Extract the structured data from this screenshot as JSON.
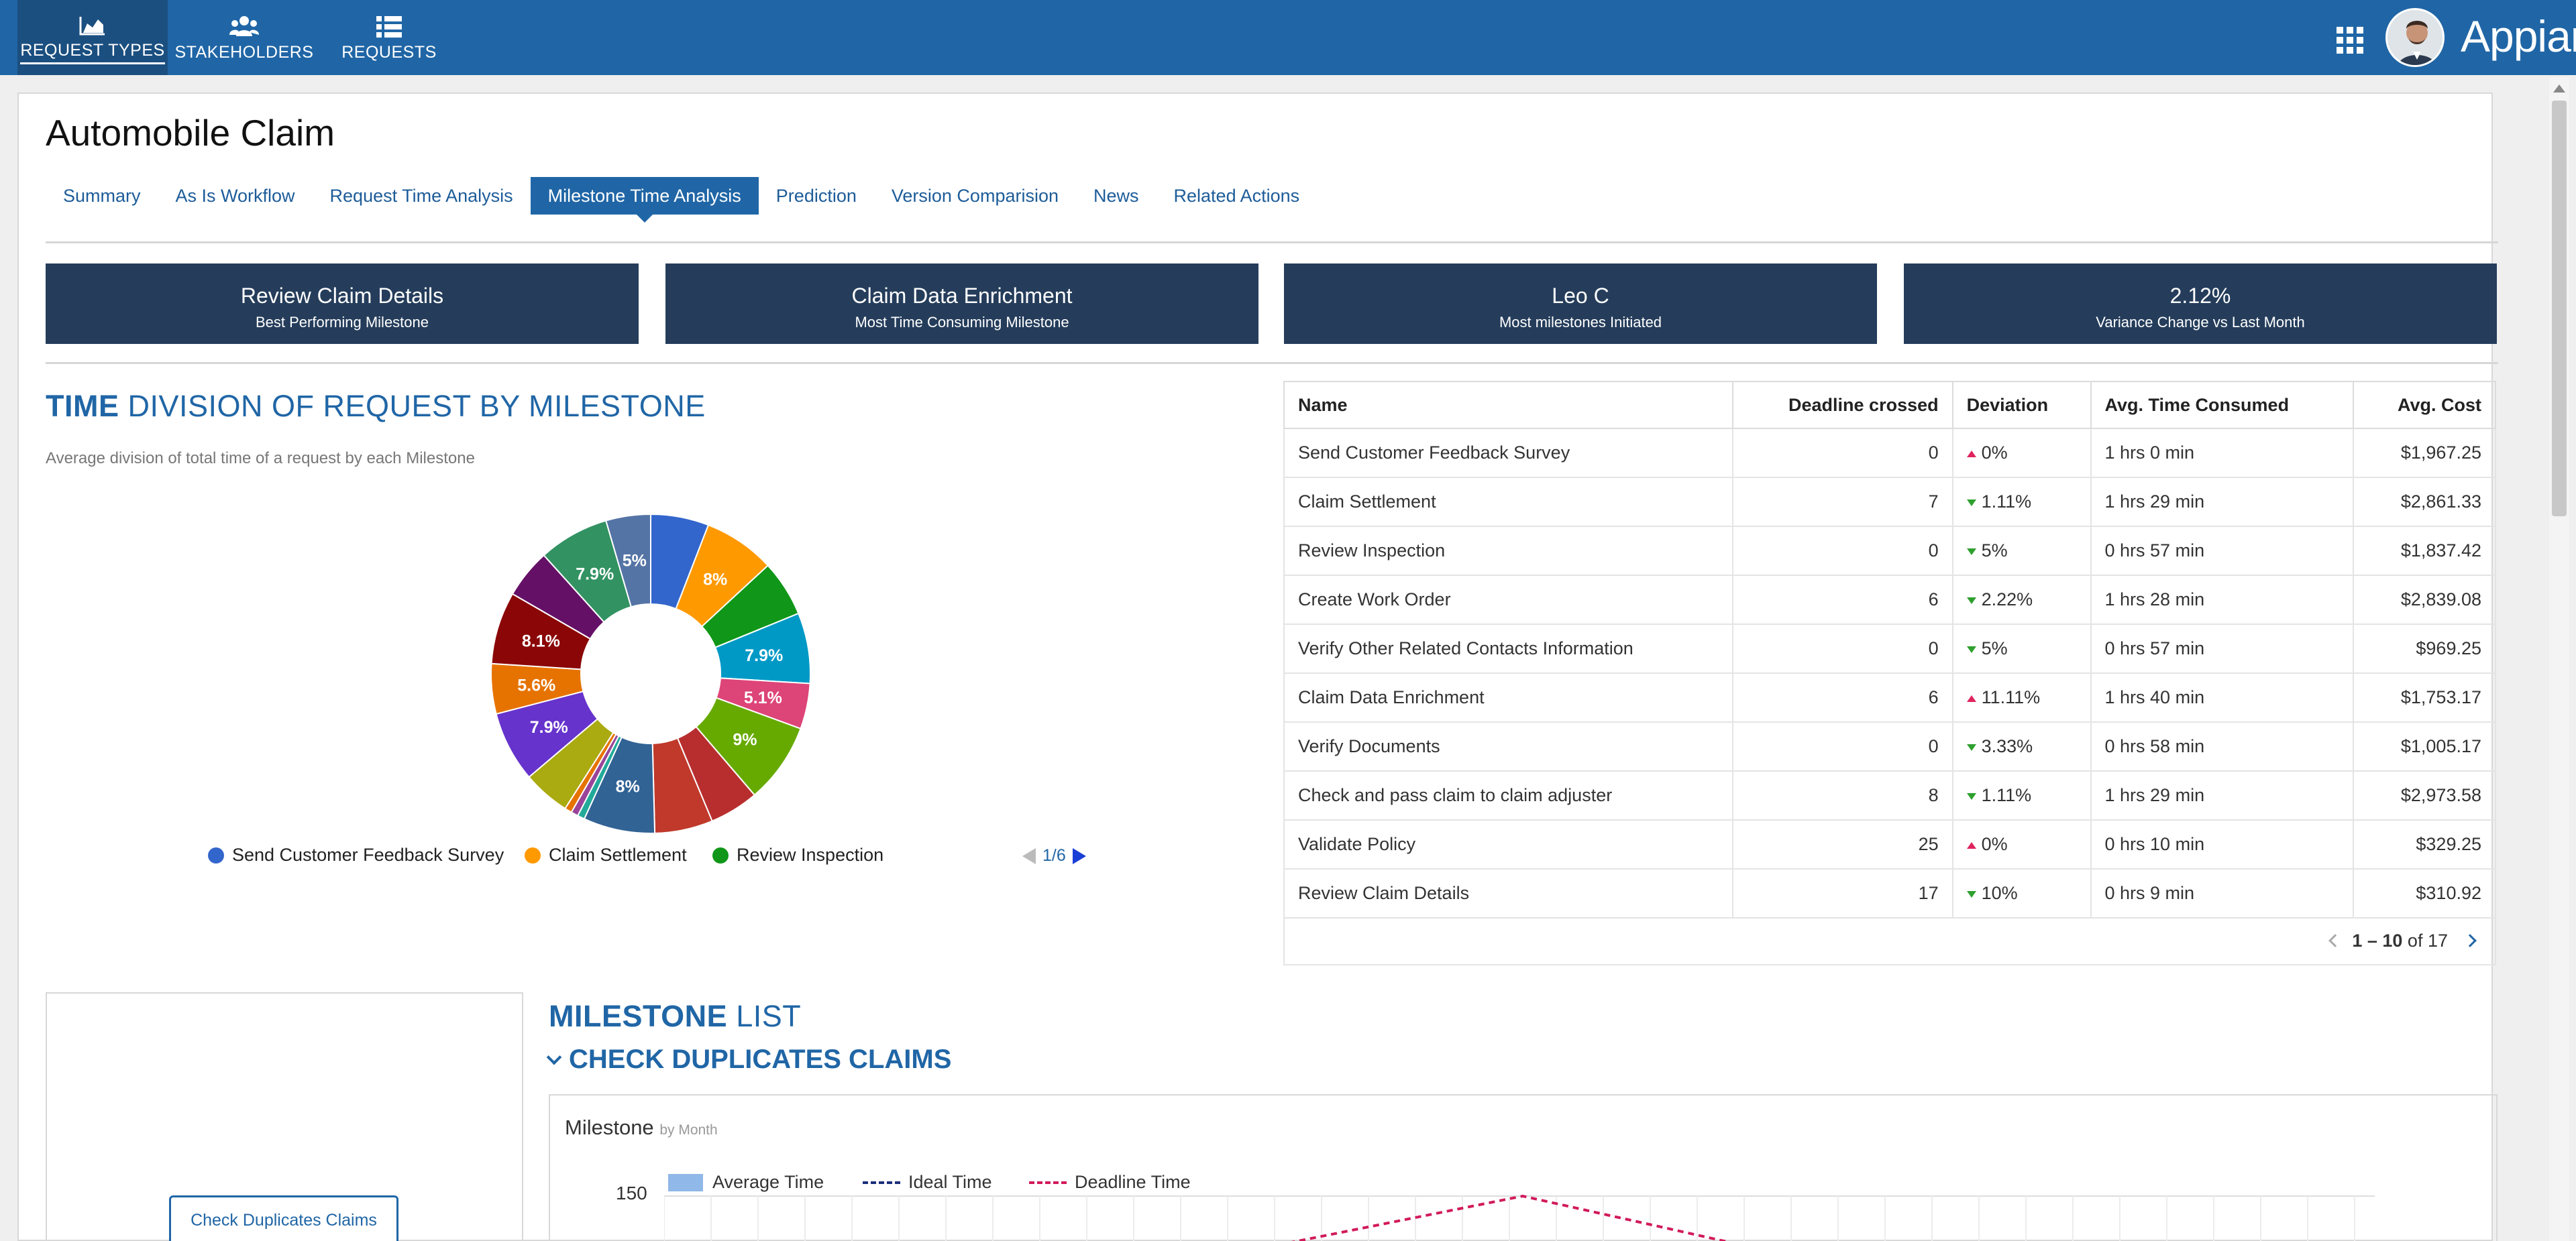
{
  "nav": {
    "items": [
      {
        "label": "REQUEST TYPES",
        "icon": "area-chart-icon"
      },
      {
        "label": "STAKEHOLDERS",
        "icon": "users-icon"
      },
      {
        "label": "REQUESTS",
        "icon": "list-icon"
      }
    ],
    "brand": "Appian"
  },
  "page": {
    "title": "Automobile Claim",
    "tabs": [
      "Summary",
      "As Is Workflow",
      "Request Time Analysis",
      "Milestone Time Analysis",
      "Prediction",
      "Version Comparision",
      "News",
      "Related Actions"
    ],
    "active_tab": "Milestone Time Analysis"
  },
  "kpis": [
    {
      "value": "Review Claim Details",
      "label": "Best Performing Milestone"
    },
    {
      "value": "Claim Data Enrichment",
      "label": "Most Time Consuming Milestone"
    },
    {
      "value": "Leo C",
      "label": "Most milestones Initiated"
    },
    {
      "value": "2.12%",
      "label": "Variance Change vs Last Month"
    }
  ],
  "time_division": {
    "title_bold": "TIME",
    "title_rest": " DIVISION OF REQUEST BY MILESTONE",
    "subtitle": "Average division of total time of a request by each Milestone",
    "legend": [
      {
        "name": "Send Customer Feedback Survey",
        "color": "#3366cc"
      },
      {
        "name": "Claim Settlement",
        "color": "#ff9900"
      },
      {
        "name": "Review Inspection",
        "color": "#109618"
      }
    ],
    "legend_page": "1/6"
  },
  "chart_data": {
    "type": "pie",
    "values": [
      6.5,
      8,
      6.3,
      7.9,
      5.1,
      9,
      5.5,
      6.5,
      8,
      0.8,
      0.8,
      0.8,
      5.3,
      7.9,
      5.6,
      8.1,
      5.5,
      7.9,
      5
    ],
    "labels": [
      "",
      "8%",
      "",
      "7.9%",
      "5.1%",
      "9%",
      "",
      "",
      "8%",
      "",
      "",
      "",
      "",
      "7.9%",
      "5.6%",
      "8.1%",
      "",
      "7.9%",
      "5%"
    ],
    "colors": [
      "#3366cc",
      "#ff9900",
      "#109618",
      "#0099c6",
      "#dd4477",
      "#66aa00",
      "#b82e2e",
      "#c0392b",
      "#316395",
      "#22aa99",
      "#994499",
      "#e67300",
      "#aaaa11",
      "#6633cc",
      "#e67300",
      "#8b0707",
      "#651067",
      "#329262",
      "#5574a6"
    ]
  },
  "table": {
    "headers": [
      "Name",
      "Deadline crossed",
      "Deviation",
      "Avg. Time Consumed",
      "Avg. Cost"
    ],
    "rows": [
      {
        "name": "Send Customer Feedback Survey",
        "deadline": "0",
        "deviation": "0%",
        "dir": "up",
        "time": "1 hrs 0 min",
        "cost": "$1,967.25"
      },
      {
        "name": "Claim Settlement",
        "deadline": "7",
        "deviation": "1.11%",
        "dir": "down",
        "time": "1 hrs 29 min",
        "cost": "$2,861.33"
      },
      {
        "name": "Review Inspection",
        "deadline": "0",
        "deviation": "5%",
        "dir": "down",
        "time": "0 hrs 57 min",
        "cost": "$1,837.42"
      },
      {
        "name": "Create Work Order",
        "deadline": "6",
        "deviation": "2.22%",
        "dir": "down",
        "time": "1 hrs 28 min",
        "cost": "$2,839.08"
      },
      {
        "name": "Verify Other Related Contacts Information",
        "deadline": "0",
        "deviation": "5%",
        "dir": "down",
        "time": "0 hrs 57 min",
        "cost": "$969.25"
      },
      {
        "name": "Claim Data Enrichment",
        "deadline": "6",
        "deviation": "11.11%",
        "dir": "up",
        "time": "1 hrs 40 min",
        "cost": "$1,753.17"
      },
      {
        "name": "Verify Documents",
        "deadline": "0",
        "deviation": "3.33%",
        "dir": "down",
        "time": "0 hrs 58 min",
        "cost": "$1,005.17"
      },
      {
        "name": "Check and pass claim to claim adjuster",
        "deadline": "8",
        "deviation": "1.11%",
        "dir": "down",
        "time": "1 hrs 29 min",
        "cost": "$2,973.58"
      },
      {
        "name": "Validate Policy",
        "deadline": "25",
        "deviation": "0%",
        "dir": "up",
        "time": "0 hrs 10 min",
        "cost": "$329.25"
      },
      {
        "name": "Review Claim Details",
        "deadline": "17",
        "deviation": "10%",
        "dir": "down",
        "time": "0 hrs 9 min",
        "cost": "$310.92"
      }
    ],
    "pager_range": "1 – 10",
    "pager_of": " of ",
    "pager_total": "17"
  },
  "milestone_list": {
    "title_bold": "MILESTONE",
    "title_rest": " LIST",
    "side_button": "Check Duplicates Claims",
    "group_title": "CHECK DUPLICATES CLAIMS",
    "chart_title": "Milestone",
    "chart_subtitle": "by Month",
    "legend": [
      "Average Time",
      "Ideal Time",
      "Deadline Time"
    ],
    "y_tick": "150"
  }
}
